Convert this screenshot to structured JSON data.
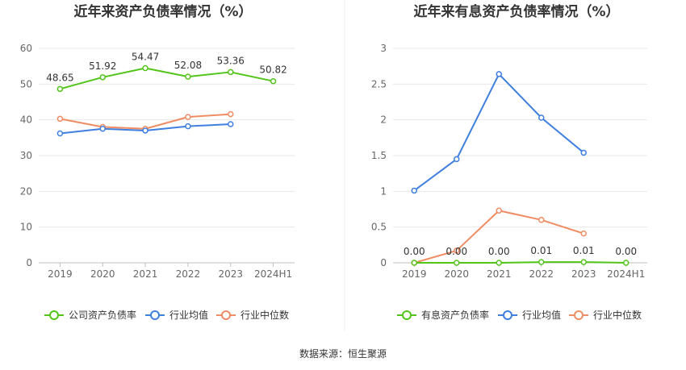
{
  "source_text": "数据来源：恒生聚源",
  "chart_data": [
    {
      "type": "line",
      "title": "近年来资产负债率情况（%）",
      "categories": [
        "2019",
        "2020",
        "2021",
        "2022",
        "2023",
        "2024H1"
      ],
      "y_ticks": [
        "0",
        "10",
        "20",
        "30",
        "40",
        "50",
        "60"
      ],
      "ylim": [
        0,
        60
      ],
      "grid": true,
      "legend_position": "bottom",
      "series": [
        {
          "name": "公司资产负债率",
          "color": "#52c41a",
          "values": [
            48.65,
            51.92,
            54.47,
            52.08,
            53.36,
            50.82
          ],
          "labels": [
            "48.65",
            "51.92",
            "54.47",
            "52.08",
            "53.36",
            "50.82"
          ]
        },
        {
          "name": "行业均值",
          "color": "#3f7fe0",
          "values": [
            36.2,
            37.5,
            37.0,
            38.2,
            38.8,
            null
          ]
        },
        {
          "name": "行业中位数",
          "color": "#f08c64",
          "values": [
            40.3,
            38.0,
            37.5,
            40.8,
            41.6,
            null
          ]
        }
      ]
    },
    {
      "type": "line",
      "title": "近年来有息资产负债率情况（%）",
      "categories": [
        "2019",
        "2020",
        "2021",
        "2022",
        "2023",
        "2024H1"
      ],
      "y_ticks": [
        "0",
        "0.5",
        "1",
        "1.5",
        "2",
        "2.5",
        "3"
      ],
      "ylim": [
        0,
        3
      ],
      "grid": true,
      "legend_position": "bottom",
      "series": [
        {
          "name": "有息资产负债率",
          "color": "#52c41a",
          "values": [
            0.0,
            0.0,
            0.0,
            0.01,
            0.01,
            0.0
          ],
          "labels": [
            "0.00",
            "0.00",
            "0.00",
            "0.01",
            "0.01",
            "0.00"
          ]
        },
        {
          "name": "行业均值",
          "color": "#3f7fe0",
          "values": [
            1.01,
            1.45,
            2.64,
            2.03,
            1.54,
            null
          ]
        },
        {
          "name": "行业中位数",
          "color": "#f08c64",
          "values": [
            0.0,
            0.17,
            0.73,
            0.6,
            0.41,
            null
          ]
        }
      ]
    }
  ]
}
